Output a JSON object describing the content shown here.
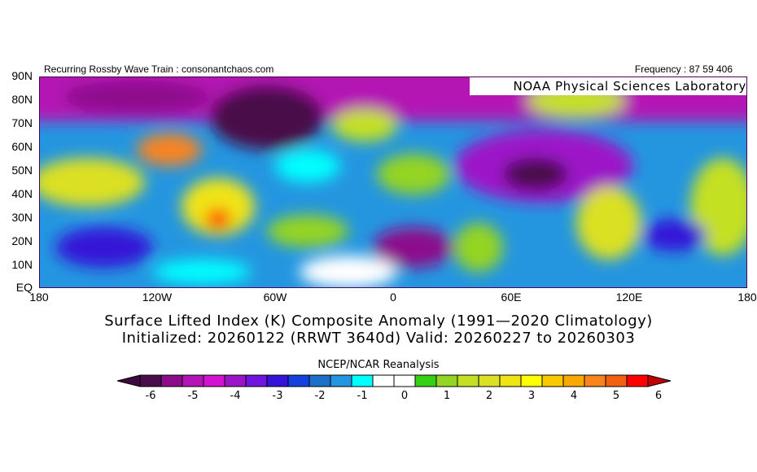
{
  "header": {
    "left": "Recurring Rossby Wave Train : consonantchaos.com",
    "right": "Frequency : 87 59 406",
    "credit": "NOAA Physical Sciences Laboratory"
  },
  "axes": {
    "lat_labels": [
      "90N",
      "80N",
      "70N",
      "60N",
      "50N",
      "40N",
      "30N",
      "20N",
      "10N",
      "EQ"
    ],
    "lon_labels": [
      "180",
      "120W",
      "60W",
      "0",
      "60E",
      "120E",
      "180"
    ]
  },
  "title": {
    "line1": "Surface Lifted Index (K) Composite Anomaly (1991—2020 Climatology)",
    "line2": "Initialized: 20260122 (RRWT 3640d) Valid: 20260227 to 20260303"
  },
  "colorbar": {
    "label": "NCEP/NCAR Reanalysis",
    "ticks": [
      "-6",
      "-5",
      "-4",
      "-3",
      "-2",
      "-1",
      "0",
      "1",
      "2",
      "3",
      "4",
      "5",
      "6"
    ],
    "colors": [
      "#4a0c4a",
      "#8c0c8c",
      "#b414b4",
      "#d214d2",
      "#9c14c8",
      "#7014e0",
      "#3414d8",
      "#1440e0",
      "#1c70c8",
      "#2496e0",
      "#00ffff",
      "#ffffff",
      "#ffffff",
      "#34d014",
      "#94d424",
      "#c4e024",
      "#dce024",
      "#f0e414",
      "#ffff00",
      "#f8c800",
      "#f8a800",
      "#f88420",
      "#f06010",
      "#ff0000"
    ],
    "under_color": "#3c0a3c",
    "over_color": "#c00000"
  }
}
